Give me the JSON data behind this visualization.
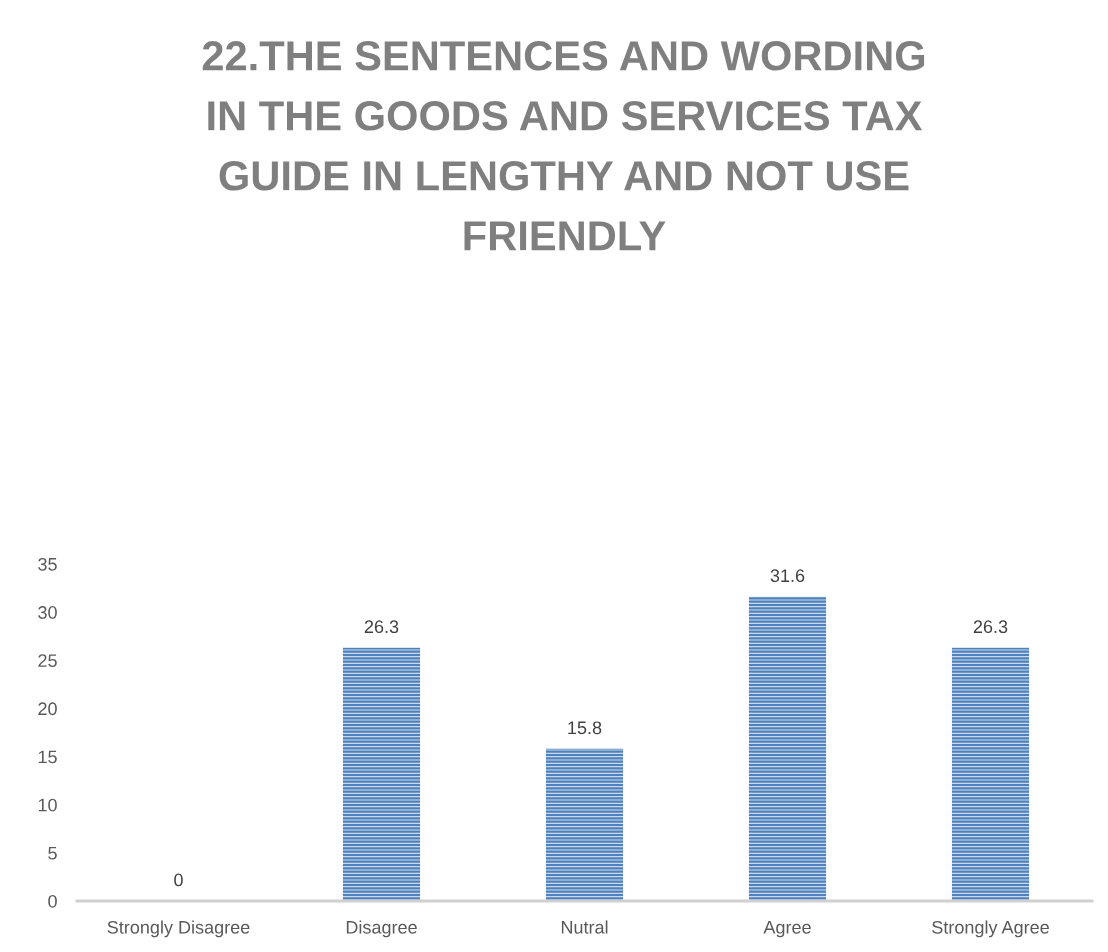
{
  "chart_data": {
    "type": "bar",
    "title": "22.THE SENTENCES AND WORDING IN THE GOODS AND SERVICES TAX GUIDE IN LENGTHY AND NOT USE FRIENDLY",
    "categories": [
      "Strongly Disagree",
      "Disagree",
      "Nutral",
      "Agree",
      "Strongly Agree"
    ],
    "values": [
      0,
      26.3,
      15.8,
      31.6,
      26.3
    ],
    "color": "#4f81bd",
    "ylim": [
      0,
      35
    ],
    "yticks": [
      0,
      5,
      10,
      15,
      20,
      25,
      30,
      35
    ],
    "data_labels": true
  }
}
